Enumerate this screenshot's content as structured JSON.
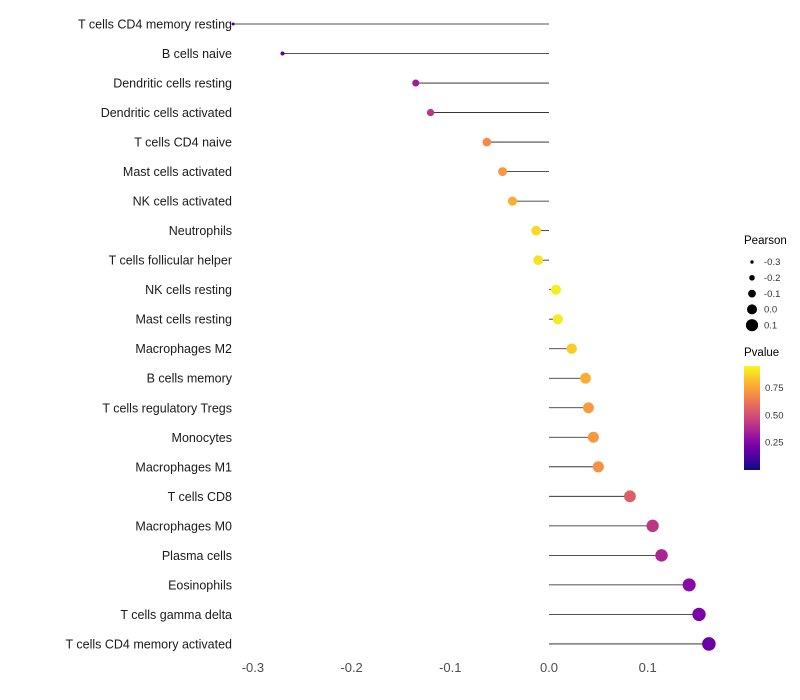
{
  "figure": {
    "background": "#ffffff",
    "text_color": "#1a1a1a",
    "axis_tick_color": "#4d4d4d",
    "stem_color": "#1a1a1a"
  },
  "chart_data": {
    "type": "scatter",
    "variant": "lollipop",
    "title": "",
    "xlabel": "",
    "ylabel": "",
    "grid": false,
    "legend_position": "right",
    "baseline": 0,
    "xlim": [
      -0.36,
      0.19
    ],
    "x_ticks": [
      "-0.3",
      "-0.2",
      "-0.1",
      "0.0",
      "0.1"
    ],
    "x_tick_values": [
      -0.3,
      -0.2,
      -0.1,
      0.0,
      0.1
    ],
    "points": [
      {
        "label": "T cells CD4 memory resting",
        "pearson": -0.32,
        "pvalue": 0.08
      },
      {
        "label": "B cells naive",
        "pearson": -0.27,
        "pvalue": 0.15
      },
      {
        "label": "Dendritic cells resting",
        "pearson": -0.135,
        "pvalue": 0.33
      },
      {
        "label": "Dendritic cells activated",
        "pearson": -0.12,
        "pvalue": 0.42
      },
      {
        "label": "T cells CD4 naive",
        "pearson": -0.063,
        "pvalue": 0.68
      },
      {
        "label": "Mast cells activated",
        "pearson": -0.047,
        "pvalue": 0.72
      },
      {
        "label": "NK cells activated",
        "pearson": -0.037,
        "pvalue": 0.78
      },
      {
        "label": "Neutrophils",
        "pearson": -0.013,
        "pvalue": 0.88
      },
      {
        "label": "T cells follicular helper",
        "pearson": -0.011,
        "pvalue": 0.9
      },
      {
        "label": "NK cells resting",
        "pearson": 0.007,
        "pvalue": 0.93
      },
      {
        "label": "Mast cells resting",
        "pearson": 0.009,
        "pvalue": 0.92
      },
      {
        "label": "Macrophages M2",
        "pearson": 0.023,
        "pvalue": 0.85
      },
      {
        "label": "B cells memory",
        "pearson": 0.037,
        "pvalue": 0.78
      },
      {
        "label": "T cells regulatory  Tregs",
        "pearson": 0.04,
        "pvalue": 0.73
      },
      {
        "label": "Monocytes",
        "pearson": 0.045,
        "pvalue": 0.72
      },
      {
        "label": "Macrophages M1",
        "pearson": 0.05,
        "pvalue": 0.7
      },
      {
        "label": "T cells CD8",
        "pearson": 0.082,
        "pvalue": 0.55
      },
      {
        "label": "Macrophages M0",
        "pearson": 0.105,
        "pvalue": 0.42
      },
      {
        "label": "Plasma cells",
        "pearson": 0.114,
        "pvalue": 0.36
      },
      {
        "label": "Eosinophils",
        "pearson": 0.142,
        "pvalue": 0.27
      },
      {
        "label": "T cells gamma delta",
        "pearson": 0.152,
        "pvalue": 0.23
      },
      {
        "label": "T cells CD4 memory activated",
        "pearson": 0.162,
        "pvalue": 0.19
      }
    ],
    "legends": {
      "size": {
        "title": "Pearson",
        "tick_labels": [
          "-0.3",
          "-0.2",
          "-0.1",
          "0.0",
          "0.1"
        ],
        "tick_values": [
          -0.3,
          -0.2,
          -0.1,
          0.0,
          0.1
        ]
      },
      "color": {
        "title": "Pvalue",
        "tick_labels": [
          "0.75",
          "0.50",
          "0.25"
        ],
        "tick_values": [
          0.75,
          0.5,
          0.25
        ],
        "range": [
          0.0,
          0.95
        ],
        "colormap": "plasma",
        "stops": [
          "#0d0887",
          "#41049d",
          "#6a00a8",
          "#8f0da4",
          "#b12a90",
          "#cc4778",
          "#e16462",
          "#f2844b",
          "#fca636",
          "#fcce25",
          "#f0f921"
        ]
      }
    }
  }
}
